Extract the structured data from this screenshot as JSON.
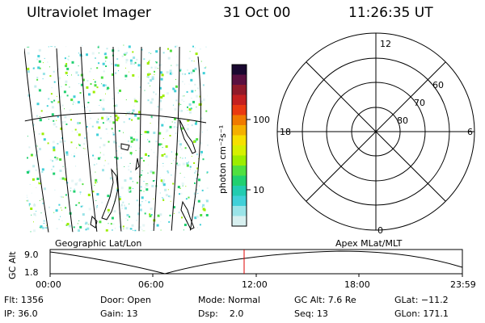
{
  "header": {
    "title": "Ultraviolet Imager",
    "date": "31 Oct 00",
    "time": "11:26:35 UT"
  },
  "colorbar": {
    "label": "photon cm⁻²s⁻¹",
    "ticks": [
      "100",
      "10"
    ],
    "colors": [
      "#1a0830",
      "#5a1040",
      "#901a2a",
      "#c42020",
      "#ea3a10",
      "#f07a00",
      "#f5b000",
      "#f6e000",
      "#d6f000",
      "#9ced00",
      "#50e040",
      "#20d070",
      "#22ccb0",
      "#40d0d8",
      "#9ae4e8",
      "#d8f0f0"
    ]
  },
  "geo_panel": {
    "label": "Geographic Lat/Lon"
  },
  "polar_plot": {
    "label": "Apex MLat/MLT",
    "mlt_labels": {
      "top": "12",
      "left": "18",
      "right": "6",
      "bottom": "0"
    },
    "lat_labels": [
      "60",
      "70",
      "80"
    ]
  },
  "altitude_plot": {
    "ylabel": "GC Alt",
    "y_ticks": [
      "9.0",
      "1.8"
    ],
    "x_ticks": [
      "00:00",
      "06:00",
      "12:00",
      "18:00",
      "23:59"
    ],
    "marker_color": "#dd0000"
  },
  "info": {
    "flt": "Flt: 1356",
    "ip": "IP: 36.0",
    "door": "Door: Open",
    "gain": "Gain: 13",
    "mode": "Mode: Normal",
    "dsp": "Dsp:    2.0",
    "gc_alt": "GC Alt: 7.6 Re",
    "seq": "Seq: 13",
    "glat": "GLat: −11.2",
    "glon": "GLon: 171.1"
  }
}
